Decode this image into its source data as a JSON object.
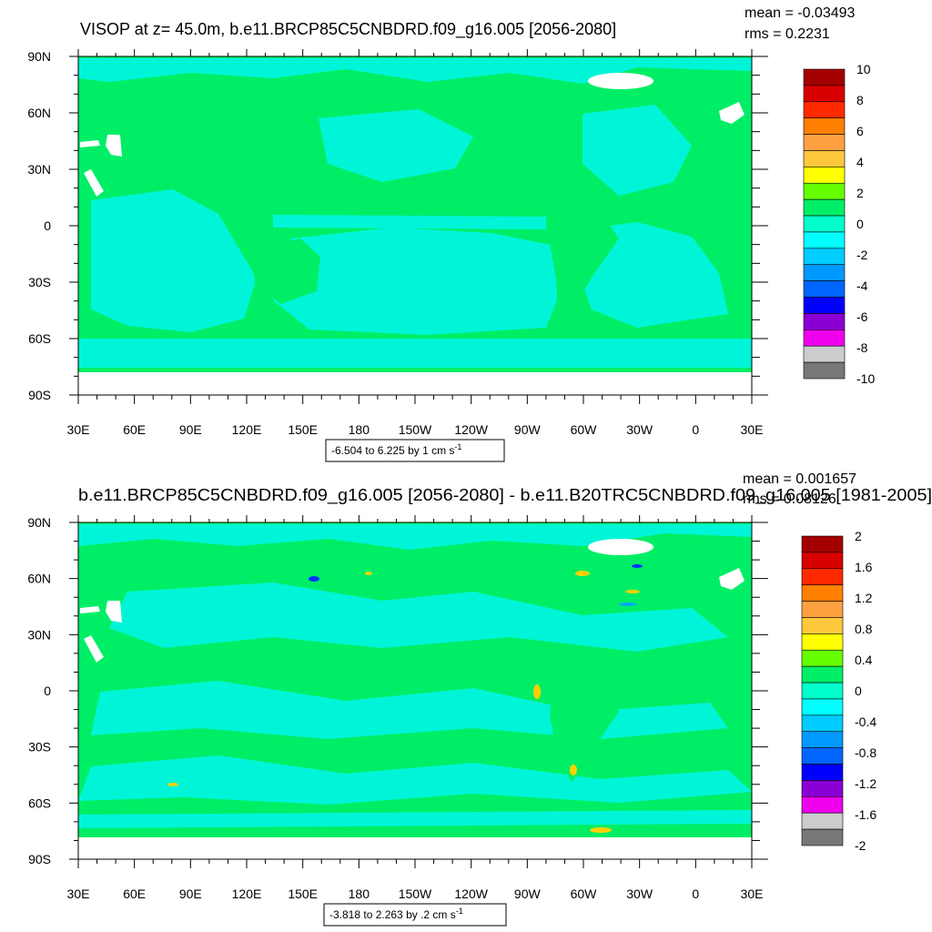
{
  "colors": {
    "ocean_neg": "#00ffcc",
    "ocean_zero": "#00ee66",
    "land_fill": "#00ee66",
    "ice_fill": "#ffffff",
    "neg_band": "#00f5d8",
    "anom_warm": "#ffd000",
    "anom_cold": "#0033ff"
  },
  "chart_data": [
    {
      "type": "heatmap",
      "title": "VISOP at z=  45.0m, b.e11.BRCP85C5CNBDRD.f09_g16.005 [2056-2080]",
      "stats": {
        "mean_label": "mean = -0.03493",
        "rms_label": "rms = 0.2231"
      },
      "ylim": [
        -90,
        90
      ],
      "xlim": [
        30,
        390
      ],
      "x_ticks": [
        "30E",
        "60E",
        "90E",
        "120E",
        "150E",
        "180",
        "150W",
        "120W",
        "90W",
        "60W",
        "30W",
        "0",
        "30E"
      ],
      "y_ticks": [
        "90N",
        "60N",
        "30N",
        "0",
        "30S",
        "60S",
        "90S"
      ],
      "info_label": "-6.504 to 6.225 by 1 cm s",
      "info_superscript": "-1",
      "colorbar": {
        "levels": [
          "10",
          "8",
          "6",
          "4",
          "2",
          "0",
          "-2",
          "-4",
          "-6",
          "-8",
          "-10"
        ],
        "colors": [
          "#a50000",
          "#d80000",
          "#ff2a00",
          "#ff7f00",
          "#ffa040",
          "#ffc83c",
          "#ffff00",
          "#66ff00",
          "#00ee66",
          "#00ffcc",
          "#00ffff",
          "#00ccff",
          "#0099ff",
          "#0066ff",
          "#0000ff",
          "#8a00d4",
          "#ee00ee",
          "#cccccc",
          "#777777"
        ]
      }
    },
    {
      "type": "heatmap",
      "title": "b.e11.BRCP85C5CNBDRD.f09_g16.005 [2056-2080] - b.e11.B20TRC5CNBDRD.f09_g16.005 [1981-2005]",
      "stats": {
        "mean_label": "mean = 0.001657",
        "rms_label": "rms = 0.08126"
      },
      "ylim": [
        -90,
        90
      ],
      "xlim": [
        30,
        390
      ],
      "x_ticks": [
        "30E",
        "60E",
        "90E",
        "120E",
        "150E",
        "180",
        "150W",
        "120W",
        "90W",
        "60W",
        "30W",
        "0",
        "30E"
      ],
      "y_ticks": [
        "90N",
        "60N",
        "30N",
        "0",
        "30S",
        "60S",
        "90S"
      ],
      "info_label": "-3.818 to 2.263 by .2 cm s",
      "info_superscript": "-1",
      "colorbar": {
        "levels": [
          "2",
          "1.6",
          "1.2",
          "0.8",
          "0.4",
          "0",
          "-0.4",
          "-0.8",
          "-1.2",
          "-1.6",
          "-2"
        ],
        "colors": [
          "#a50000",
          "#d80000",
          "#ff2a00",
          "#ff7f00",
          "#ffa040",
          "#ffc83c",
          "#ffff00",
          "#66ff00",
          "#00ee66",
          "#00ffcc",
          "#00ffff",
          "#00ccff",
          "#0099ff",
          "#0066ff",
          "#0000ff",
          "#8a00d4",
          "#ee00ee",
          "#cccccc",
          "#777777"
        ]
      }
    }
  ]
}
